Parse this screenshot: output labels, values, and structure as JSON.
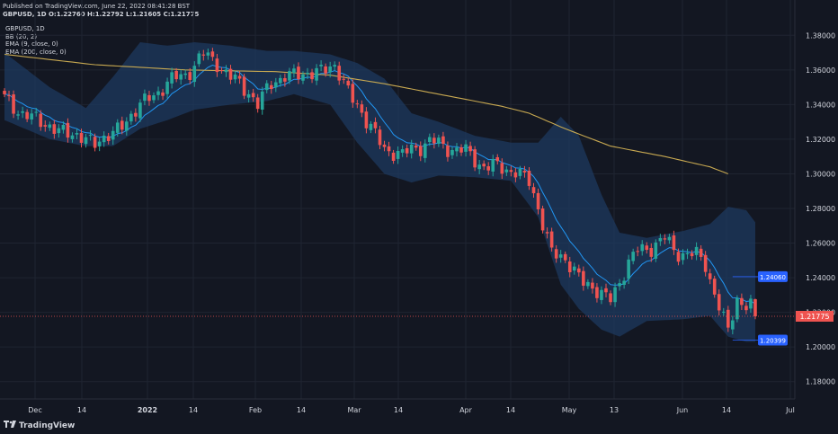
{
  "header": {
    "published": "Published on TradingView.com, June 22, 2022 08:41:28 BST",
    "symbol_line": "GBPUSD, 1D  O:1.22760 H:1.22792 L:1.21605 C:1.21775"
  },
  "indicators": [
    "GBPUSD, 1D",
    "BB (20, 2)",
    "EMA (9, close, 0)",
    "EMA (200, close, 0)"
  ],
  "brand": {
    "logo_text": "TradingView"
  },
  "colors": {
    "background": "#131722",
    "up": "#26a69a",
    "down": "#ef5350",
    "bb_fill": "#1e3a5f",
    "ema9": "#2196f3",
    "ema200": "#c8a951",
    "last_price": "#ef5350",
    "marker": "#2962ff"
  },
  "chart_data": {
    "type": "candlestick",
    "symbol": "GBPUSD",
    "timeframe": "1D",
    "last_bar": {
      "open": 1.2276,
      "high": 1.22792,
      "low": 1.21605,
      "close": 1.21775
    },
    "ylim": [
      1.17,
      1.39
    ],
    "y_ticks": [
      "1.38000",
      "1.36000",
      "1.34000",
      "1.32000",
      "1.30000",
      "1.28000",
      "1.26000",
      "1.24000",
      "1.22000",
      "1.20000",
      "1.18000"
    ],
    "x_labels": [
      "Dec",
      "14",
      "2022",
      "14",
      "Feb",
      "14",
      "Mar",
      "14",
      "Apr",
      "14",
      "May",
      "13",
      "Jun",
      "14",
      "Jul"
    ],
    "last_price_label": "1.21775",
    "price_markers": [
      "1.24060",
      "1.20399"
    ],
    "close_path": [
      [
        0,
        1.343
      ],
      [
        4,
        1.335
      ],
      [
        8,
        1.33
      ],
      [
        12,
        1.325
      ],
      [
        16,
        1.322
      ],
      [
        20,
        1.318
      ],
      [
        24,
        1.323
      ],
      [
        28,
        1.334
      ],
      [
        32,
        1.344
      ],
      [
        36,
        1.352
      ],
      [
        40,
        1.358
      ],
      [
        44,
        1.368
      ],
      [
        47,
        1.365
      ],
      [
        50,
        1.355
      ],
      [
        54,
        1.348
      ],
      [
        56,
        1.34
      ],
      [
        59,
        1.352
      ],
      [
        62,
        1.357
      ],
      [
        66,
        1.357
      ],
      [
        70,
        1.36
      ],
      [
        73,
        1.362
      ],
      [
        76,
        1.348
      ],
      [
        78,
        1.34
      ],
      [
        80,
        1.33
      ],
      [
        84,
        1.315
      ],
      [
        88,
        1.31
      ],
      [
        90,
        1.315
      ],
      [
        94,
        1.318
      ],
      [
        98,
        1.316
      ],
      [
        102,
        1.312
      ],
      [
        106,
        1.305
      ],
      [
        110,
        1.303
      ],
      [
        113,
        1.302
      ],
      [
        116,
        1.295
      ],
      [
        118,
        1.28
      ],
      [
        121,
        1.255
      ],
      [
        124,
        1.25
      ],
      [
        128,
        1.238
      ],
      [
        132,
        1.23
      ],
      [
        134,
        1.228
      ],
      [
        138,
        1.248
      ],
      [
        140,
        1.256
      ],
      [
        143,
        1.258
      ],
      [
        146,
        1.262
      ],
      [
        148,
        1.256
      ],
      [
        151,
        1.254
      ],
      [
        153,
        1.252
      ],
      [
        155,
        1.248
      ],
      [
        157,
        1.232
      ],
      [
        159,
        1.215
      ],
      [
        160,
        1.208
      ],
      [
        162,
        1.228
      ],
      [
        165,
        1.224
      ],
      [
        166,
        1.218
      ]
    ],
    "bb_upper": [
      [
        0,
        1.37
      ],
      [
        10,
        1.35
      ],
      [
        18,
        1.338
      ],
      [
        24,
        1.356
      ],
      [
        30,
        1.376
      ],
      [
        36,
        1.374
      ],
      [
        42,
        1.376
      ],
      [
        50,
        1.374
      ],
      [
        58,
        1.371
      ],
      [
        64,
        1.371
      ],
      [
        72,
        1.369
      ],
      [
        78,
        1.364
      ],
      [
        84,
        1.355
      ],
      [
        90,
        1.335
      ],
      [
        96,
        1.33
      ],
      [
        104,
        1.322
      ],
      [
        112,
        1.318
      ],
      [
        118,
        1.318
      ],
      [
        123,
        1.333
      ],
      [
        127,
        1.322
      ],
      [
        132,
        1.288
      ],
      [
        136,
        1.266
      ],
      [
        142,
        1.263
      ],
      [
        150,
        1.267
      ],
      [
        156,
        1.271
      ],
      [
        160,
        1.281
      ],
      [
        164,
        1.279
      ],
      [
        166,
        1.272
      ]
    ],
    "bb_lower": [
      [
        0,
        1.331
      ],
      [
        10,
        1.32
      ],
      [
        18,
        1.316
      ],
      [
        24,
        1.316
      ],
      [
        30,
        1.326
      ],
      [
        36,
        1.331
      ],
      [
        42,
        1.337
      ],
      [
        50,
        1.34
      ],
      [
        58,
        1.342
      ],
      [
        64,
        1.346
      ],
      [
        72,
        1.34
      ],
      [
        78,
        1.318
      ],
      [
        84,
        1.3
      ],
      [
        90,
        1.295
      ],
      [
        96,
        1.299
      ],
      [
        104,
        1.298
      ],
      [
        112,
        1.296
      ],
      [
        118,
        1.275
      ],
      [
        123,
        1.236
      ],
      [
        127,
        1.222
      ],
      [
        132,
        1.21
      ],
      [
        136,
        1.206
      ],
      [
        142,
        1.215
      ],
      [
        150,
        1.216
      ],
      [
        156,
        1.218
      ],
      [
        160,
        1.206
      ],
      [
        164,
        1.203
      ],
      [
        166,
        1.203
      ]
    ],
    "ema200": [
      [
        0,
        1.369
      ],
      [
        20,
        1.363
      ],
      [
        40,
        1.36
      ],
      [
        60,
        1.359
      ],
      [
        72,
        1.357
      ],
      [
        84,
        1.352
      ],
      [
        100,
        1.344
      ],
      [
        110,
        1.339
      ],
      [
        116,
        1.335
      ],
      [
        124,
        1.326
      ],
      [
        134,
        1.316
      ],
      [
        146,
        1.31
      ],
      [
        156,
        1.304
      ],
      [
        160,
        1.3
      ]
    ]
  }
}
